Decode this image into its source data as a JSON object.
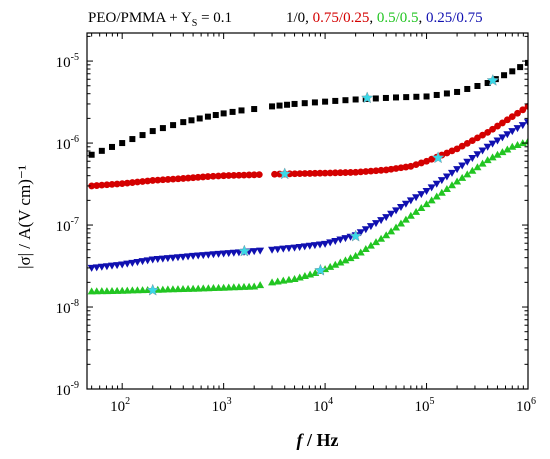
{
  "header": {
    "system_label": "PEO/PMMA + Y",
    "system_subscript": "S",
    "system_value": " = 0.1",
    "legend_items": [
      {
        "text": "1/0",
        "color": "#000000"
      },
      {
        "text": ", ",
        "color": "#000000"
      },
      {
        "text": "0.75/0.25",
        "color": "#d40000"
      },
      {
        "text": ", ",
        "color": "#000000"
      },
      {
        "text": "0.5/0.5",
        "color": "#22c522"
      },
      {
        "text": ", ",
        "color": "#000000"
      },
      {
        "text": "0.25/0.75",
        "color": "#1010b0"
      }
    ]
  },
  "chart_data": {
    "type": "scatter",
    "xlabel": "f / Hz",
    "ylabel": "|σ| / A(V cm)⁻¹",
    "xscale": "log",
    "yscale": "log",
    "xlim": [
      45,
      1000000
    ],
    "ylim": [
      1e-09,
      2.2e-05
    ],
    "x_ticks": [
      {
        "value": 100,
        "base": "10",
        "exp": "2"
      },
      {
        "value": 1000,
        "base": "10",
        "exp": "3"
      },
      {
        "value": 10000,
        "base": "10",
        "exp": "4"
      },
      {
        "value": 100000,
        "base": "10",
        "exp": "5"
      },
      {
        "value": 1000000,
        "base": "10",
        "exp": "6"
      }
    ],
    "y_ticks": [
      {
        "value": 1e-09,
        "base": "10",
        "exp": "-9"
      },
      {
        "value": 1e-08,
        "base": "10",
        "exp": "-8"
      },
      {
        "value": 1e-07,
        "base": "10",
        "exp": "-7"
      },
      {
        "value": 1e-06,
        "base": "10",
        "exp": "-6"
      },
      {
        "value": 1e-05,
        "base": "10",
        "exp": "-5"
      }
    ],
    "series": [
      {
        "name": "1/0",
        "color": "#000000",
        "marker": "square",
        "points": [
          [
            50,
            7.2e-07
          ],
          [
            100,
            1e-06
          ],
          [
            200,
            1.4e-06
          ],
          [
            400,
            1.8e-06
          ],
          [
            700,
            2.1e-06
          ],
          [
            1000,
            2.3e-06
          ],
          [
            1500,
            2.5e-06
          ],
          [
            2000,
            2.6e-06
          ],
          [
            3000,
            2.8e-06
          ],
          [
            5000,
            3e-06
          ],
          [
            10000,
            3.2e-06
          ],
          [
            20000,
            3.4e-06
          ],
          [
            50000,
            3.6e-06
          ],
          [
            100000,
            3.7e-06
          ],
          [
            200000,
            4.2e-06
          ],
          [
            400000,
            5.4e-06
          ],
          [
            700000,
            7.5e-06
          ],
          [
            1000000,
            9.5e-06
          ]
        ]
      },
      {
        "name": "0.75/0.25",
        "color": "#d40000",
        "marker": "circle",
        "points": [
          [
            50,
            3e-07
          ],
          [
            100,
            3.2e-07
          ],
          [
            200,
            3.5e-07
          ],
          [
            400,
            3.7e-07
          ],
          [
            700,
            3.9e-07
          ],
          [
            1000,
            4e-07
          ],
          [
            2000,
            4.1e-07
          ],
          [
            4000,
            4.2e-07
          ],
          [
            10000,
            4.3e-07
          ],
          [
            20000,
            4.4e-07
          ],
          [
            40000,
            4.7e-07
          ],
          [
            70000,
            5.2e-07
          ],
          [
            100000,
            6e-07
          ],
          [
            200000,
            8.5e-07
          ],
          [
            400000,
            1.35e-06
          ],
          [
            700000,
            2.1e-06
          ],
          [
            1000000,
            2.8e-06
          ]
        ]
      },
      {
        "name": "0.5/0.5",
        "color": "#22c522",
        "marker": "triangle-up",
        "points": [
          [
            50,
            1.55e-08
          ],
          [
            100,
            1.58e-08
          ],
          [
            200,
            1.62e-08
          ],
          [
            500,
            1.67e-08
          ],
          [
            1000,
            1.72e-08
          ],
          [
            2000,
            1.78e-08
          ],
          [
            3000,
            2e-08
          ],
          [
            5000,
            2.2e-08
          ],
          [
            8000,
            2.6e-08
          ],
          [
            10000,
            2.9e-08
          ],
          [
            20000,
            4.2e-08
          ],
          [
            40000,
            7.5e-08
          ],
          [
            70000,
            1.3e-07
          ],
          [
            100000,
            1.8e-07
          ],
          [
            200000,
            3.4e-07
          ],
          [
            400000,
            6.2e-07
          ],
          [
            700000,
            9e-07
          ],
          [
            1000000,
            1.05e-06
          ]
        ]
      },
      {
        "name": "0.25/0.75",
        "color": "#1010b0",
        "marker": "triangle-down",
        "points": [
          [
            50,
            3e-08
          ],
          [
            100,
            3.3e-08
          ],
          [
            200,
            3.8e-08
          ],
          [
            500,
            4.2e-08
          ],
          [
            1000,
            4.5e-08
          ],
          [
            2000,
            4.8e-08
          ],
          [
            3000,
            5e-08
          ],
          [
            5000,
            5.3e-08
          ],
          [
            10000,
            5.9e-08
          ],
          [
            20000,
            7.5e-08
          ],
          [
            40000,
            1.25e-07
          ],
          [
            70000,
            2e-07
          ],
          [
            100000,
            2.6e-07
          ],
          [
            200000,
            4.8e-07
          ],
          [
            400000,
            9e-07
          ],
          [
            700000,
            1.4e-06
          ],
          [
            1000000,
            1.8e-06
          ]
        ]
      },
      {
        "name": "",
        "color": "#3ad9e8",
        "marker": "star",
        "points": [
          [
            26000,
            3.55e-06
          ],
          [
            450000,
            5.8e-06
          ],
          [
            4000,
            4.2e-07
          ],
          [
            130000,
            6.6e-07
          ],
          [
            200,
            1.6e-08
          ],
          [
            9000,
            2.8e-08
          ],
          [
            1600,
            4.8e-08
          ],
          [
            20000,
            7.3e-08
          ]
        ]
      }
    ],
    "grid": false
  }
}
